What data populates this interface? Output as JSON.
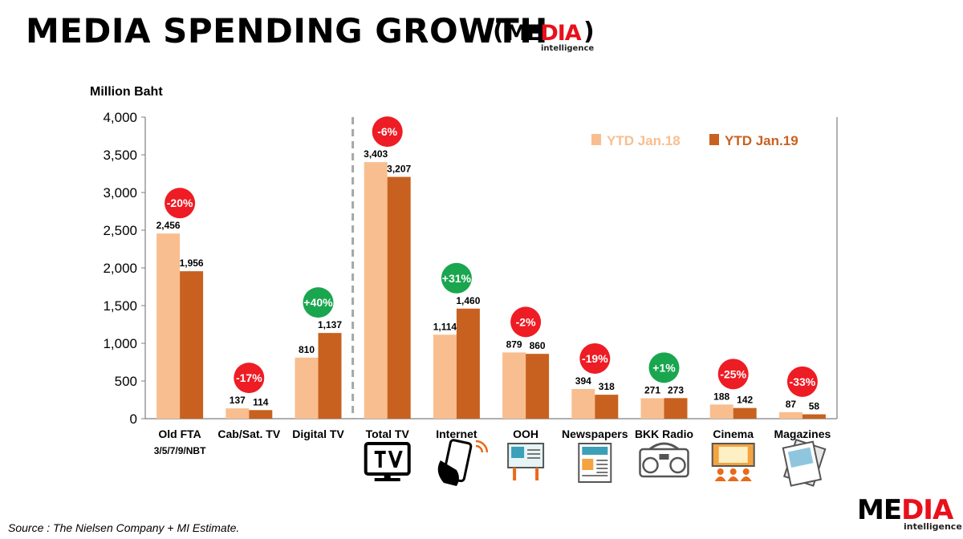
{
  "header": {
    "title": "MEDIA SPENDING GROWTH",
    "brand_open_paren": "(",
    "brand_close_paren": ")",
    "brand_part1": "ME",
    "brand_part2": "D",
    "brand_part3": "IA",
    "brand_sub": "intelligence"
  },
  "footer": {
    "source": "Source :  The Nielsen  Company + MI Estimate.",
    "logo_part1": "ME",
    "logo_part2": "D",
    "logo_part3": "IA",
    "logo_sub": "intelligence"
  },
  "colors": {
    "series1": "#f9be8f",
    "series2": "#c8611f",
    "neg_badge": "#ee1c24",
    "pos_badge": "#1aa64f",
    "axis": "#7f7f7f"
  },
  "icons": [
    "tv-icon",
    "smartphone-icon",
    "billboard-icon",
    "newspaper-icon",
    "radio-icon",
    "cinema-icon",
    "magazine-icon"
  ],
  "chart_data": {
    "type": "bar",
    "ylabel": "Million Baht",
    "ylim": [
      0,
      4000
    ],
    "yticks": [
      0,
      500,
      1000,
      1500,
      2000,
      2500,
      3000,
      3500,
      4000
    ],
    "ytick_labels": [
      "0",
      "500",
      "1,000",
      "1,500",
      "2,000",
      "2,500",
      "3,000",
      "3,500",
      "4,000"
    ],
    "grid": false,
    "legend_position": "top-right",
    "categories": [
      "Old FTA",
      "Cab/Sat. TV",
      "Digital TV",
      "Total TV",
      "Internet",
      "OOH",
      "Newspapers",
      "BKK Radio",
      "Cinema",
      "Magazines"
    ],
    "category_sublabels": [
      "3/5/7/9/NBT",
      "",
      "",
      "",
      "",
      "",
      "",
      "",
      "",
      ""
    ],
    "series": [
      {
        "name": "YTD Jan.18",
        "values": [
          2456,
          137,
          810,
          3403,
          1114,
          879,
          394,
          271,
          188,
          87
        ],
        "labels": [
          "2,456",
          "137",
          "810",
          "3,403",
          "1,114",
          "879",
          "394",
          "271",
          "188",
          "87"
        ]
      },
      {
        "name": "YTD Jan.19",
        "values": [
          1956,
          114,
          1137,
          3207,
          1460,
          860,
          318,
          273,
          142,
          58
        ],
        "labels": [
          "1,956",
          "114",
          "1,137",
          "3,207",
          "1,460",
          "860",
          "318",
          "273",
          "142",
          "58"
        ]
      }
    ],
    "growth": [
      "-20%",
      "-17%",
      "+40%",
      "-6%",
      "+31%",
      "-2%",
      "-19%",
      "+1%",
      "-25%",
      "-33%"
    ],
    "divider_after_category": "Digital TV"
  }
}
